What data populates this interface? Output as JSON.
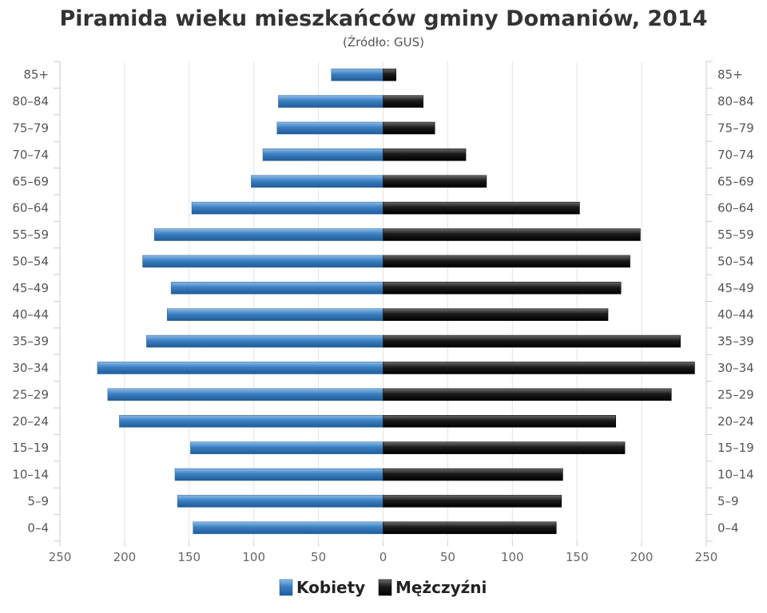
{
  "chart_data": {
    "type": "bar",
    "orientation": "population-pyramid",
    "title": "Piramida wieku mieszkańców gminy Domaniów, 2014",
    "subtitle": "(Źródło: GUS)",
    "categories": [
      "85+",
      "80–84",
      "75–79",
      "70–74",
      "65–69",
      "60–64",
      "55–59",
      "50–54",
      "45–49",
      "40–44",
      "35–39",
      "30–34",
      "25–29",
      "20–24",
      "15–19",
      "10–14",
      "5–9",
      "0–4"
    ],
    "series": [
      {
        "name": "Kobiety",
        "color": "#3c7fc1",
        "side": "left",
        "values": [
          40,
          81,
          82,
          93,
          102,
          148,
          177,
          186,
          164,
          167,
          183,
          221,
          213,
          204,
          149,
          161,
          159,
          147
        ]
      },
      {
        "name": "Mężczyźni",
        "color": "#1a1a1a",
        "side": "right",
        "values": [
          10,
          31,
          40,
          64,
          80,
          152,
          199,
          191,
          184,
          174,
          230,
          241,
          223,
          180,
          187,
          139,
          138,
          134
        ]
      }
    ],
    "xticks": [
      "250",
      "200",
      "150",
      "100",
      "50",
      "0",
      "50",
      "100",
      "150",
      "200",
      "250"
    ],
    "xlim": [
      -250,
      250
    ],
    "grid": true,
    "legend_position": "bottom-center"
  }
}
